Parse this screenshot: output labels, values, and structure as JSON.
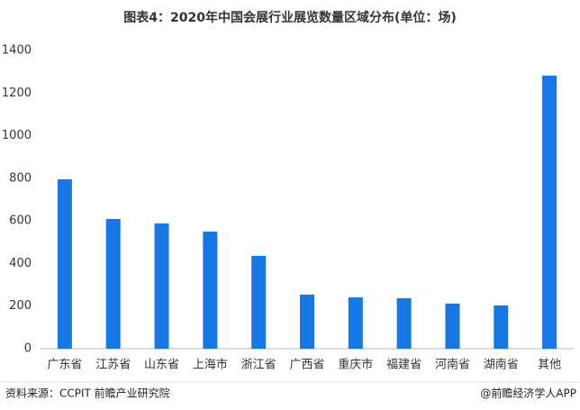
{
  "chart_data": {
    "type": "bar",
    "title": "图表4：2020年中国会展行业展览数量区域分布(单位：场)",
    "categories": [
      "广东省",
      "江苏省",
      "山东省",
      "上海市",
      "浙江省",
      "广西省",
      "重庆市",
      "福建省",
      "河南省",
      "湖南省",
      "其他"
    ],
    "values": [
      795,
      609,
      588,
      550,
      436,
      254,
      241,
      237,
      212,
      203,
      1282
    ],
    "color": "#1677e5",
    "ylim": [
      0,
      1400
    ],
    "yticks": [
      0,
      200,
      400,
      600,
      800,
      1000,
      1200,
      1400
    ],
    "grid": false,
    "source": "资料来源：CCPIT 前瞻产业研究院",
    "credit": "@前瞻经济学人APP"
  }
}
